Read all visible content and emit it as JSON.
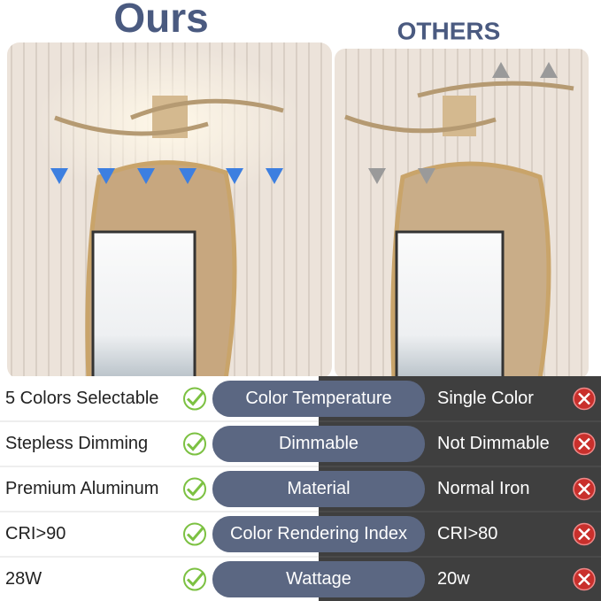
{
  "header": {
    "ours": "Ours",
    "others": "OTHERS"
  },
  "rows": [
    {
      "ours": "5 Colors Selectable",
      "feature": "Color Temperature",
      "others": "Single Color"
    },
    {
      "ours": "Stepless Dimming",
      "feature": "Dimmable",
      "others": "Not Dimmable"
    },
    {
      "ours": "Premium Aluminum",
      "feature": "Material",
      "others": "Normal Iron"
    },
    {
      "ours": "CRI>90",
      "feature": "Color Rendering Index",
      "others": "CRI>80"
    },
    {
      "ours": "28W",
      "feature": "Wattage",
      "others": "20w"
    }
  ]
}
